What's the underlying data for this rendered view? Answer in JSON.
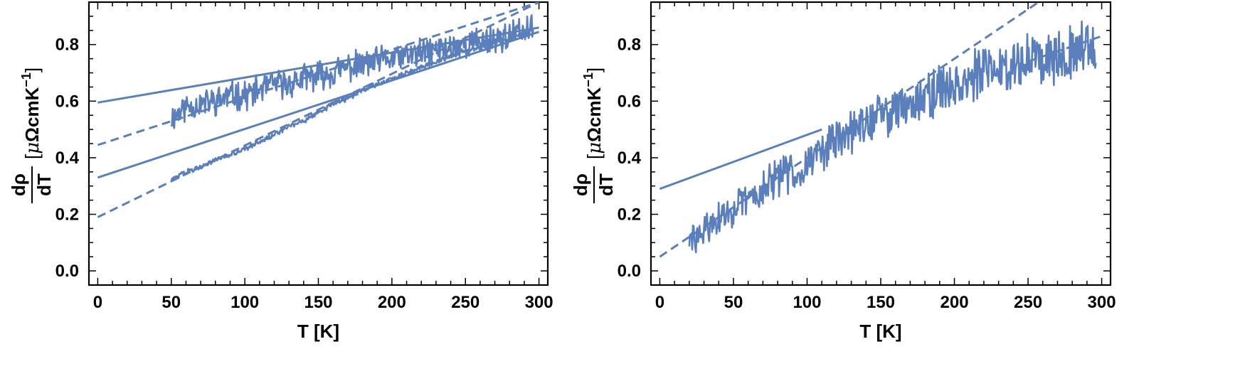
{
  "chart_data": [
    {
      "type": "line",
      "title": "",
      "xlabel": "T [K]",
      "ylabel": {
        "numerator": "dρ",
        "denominator": "dT",
        "units_open": "[",
        "units_mu": "μ",
        "units_body": "ΩcmK",
        "units_exp": "−1",
        "units_close": "]"
      },
      "xlim": [
        -6,
        306
      ],
      "ylim": [
        -0.05,
        0.95
      ],
      "xticks": [
        0,
        50,
        100,
        150,
        200,
        250,
        300
      ],
      "xtick_labels": [
        "0",
        "50",
        "100",
        "150",
        "200",
        "250",
        "300"
      ],
      "yticks": [
        0.0,
        0.2,
        0.4,
        0.6,
        0.8
      ],
      "ytick_labels": [
        "0.0",
        "0.2",
        "0.4",
        "0.6",
        "0.8"
      ],
      "grid": false,
      "color": "#5b7fbb",
      "series": [
        {
          "style": "noisy",
          "x": [
            50,
            60,
            70,
            80,
            90,
            100,
            110,
            120,
            130,
            140,
            150,
            160,
            170,
            180,
            190,
            200,
            210,
            220,
            230,
            240,
            250,
            260,
            270,
            280,
            290,
            296
          ],
          "y": [
            0.54,
            0.58,
            0.59,
            0.6,
            0.62,
            0.62,
            0.64,
            0.66,
            0.66,
            0.68,
            0.69,
            0.7,
            0.72,
            0.73,
            0.74,
            0.75,
            0.76,
            0.77,
            0.78,
            0.79,
            0.8,
            0.81,
            0.82,
            0.83,
            0.85,
            0.85
          ]
        },
        {
          "style": "noisy",
          "x": [
            50,
            60,
            70,
            80,
            90,
            100,
            110,
            120,
            130,
            140,
            150,
            160,
            170,
            180,
            190,
            200,
            210,
            220,
            230,
            240,
            250,
            260,
            270,
            280,
            290,
            296
          ],
          "y": [
            0.32,
            0.35,
            0.37,
            0.39,
            0.41,
            0.43,
            0.46,
            0.48,
            0.51,
            0.53,
            0.56,
            0.59,
            0.61,
            0.64,
            0.66,
            0.68,
            0.7,
            0.72,
            0.74,
            0.76,
            0.78,
            0.79,
            0.81,
            0.82,
            0.84,
            0.85
          ]
        },
        {
          "style": "solid",
          "x": [
            0,
            300
          ],
          "y": [
            0.595,
            0.86
          ]
        },
        {
          "style": "solid",
          "x": [
            0,
            300
          ],
          "y": [
            0.33,
            0.845
          ]
        },
        {
          "style": "dashed",
          "x": [
            0,
            300
          ],
          "y": [
            0.445,
            0.95
          ]
        },
        {
          "style": "dashed",
          "x": [
            0,
            300
          ],
          "y": [
            0.19,
            0.95
          ]
        }
      ]
    },
    {
      "type": "line",
      "title": "",
      "xlabel": "T [K]",
      "ylabel": {
        "numerator": "dρ",
        "denominator": "dT",
        "units_open": "[",
        "units_mu": "μ",
        "units_body": "ΩcmK",
        "units_exp": "−1",
        "units_close": "]"
      },
      "xlim": [
        -6,
        306
      ],
      "ylim": [
        -0.05,
        0.95
      ],
      "xticks": [
        0,
        50,
        100,
        150,
        200,
        250,
        300
      ],
      "xtick_labels": [
        "0",
        "50",
        "100",
        "150",
        "200",
        "250",
        "300"
      ],
      "yticks": [
        0.0,
        0.2,
        0.4,
        0.6,
        0.8
      ],
      "ytick_labels": [
        "0.0",
        "0.2",
        "0.4",
        "0.6",
        "0.8"
      ],
      "grid": false,
      "color": "#5b7fbb",
      "series": [
        {
          "style": "noisy",
          "x": [
            20,
            30,
            40,
            50,
            60,
            70,
            80,
            90,
            100,
            110,
            120,
            130,
            140,
            150,
            160,
            170,
            180,
            190,
            200,
            210,
            220,
            230,
            240,
            250,
            260,
            270,
            280,
            290,
            296
          ],
          "y": [
            0.1,
            0.14,
            0.18,
            0.22,
            0.25,
            0.29,
            0.33,
            0.35,
            0.38,
            0.43,
            0.46,
            0.49,
            0.52,
            0.55,
            0.57,
            0.6,
            0.62,
            0.64,
            0.66,
            0.68,
            0.7,
            0.72,
            0.73,
            0.75,
            0.76,
            0.77,
            0.78,
            0.8,
            0.8
          ]
        },
        {
          "style": "solid",
          "x": [
            0,
            110
          ],
          "y": [
            0.29,
            0.5
          ]
        },
        {
          "style": "dashed",
          "x": [
            0,
            300
          ],
          "y": [
            0.05,
            1.1
          ]
        },
        {
          "style": "dashed",
          "x": [
            250,
            300
          ],
          "y": [
            0.74,
            0.83
          ]
        }
      ]
    }
  ]
}
